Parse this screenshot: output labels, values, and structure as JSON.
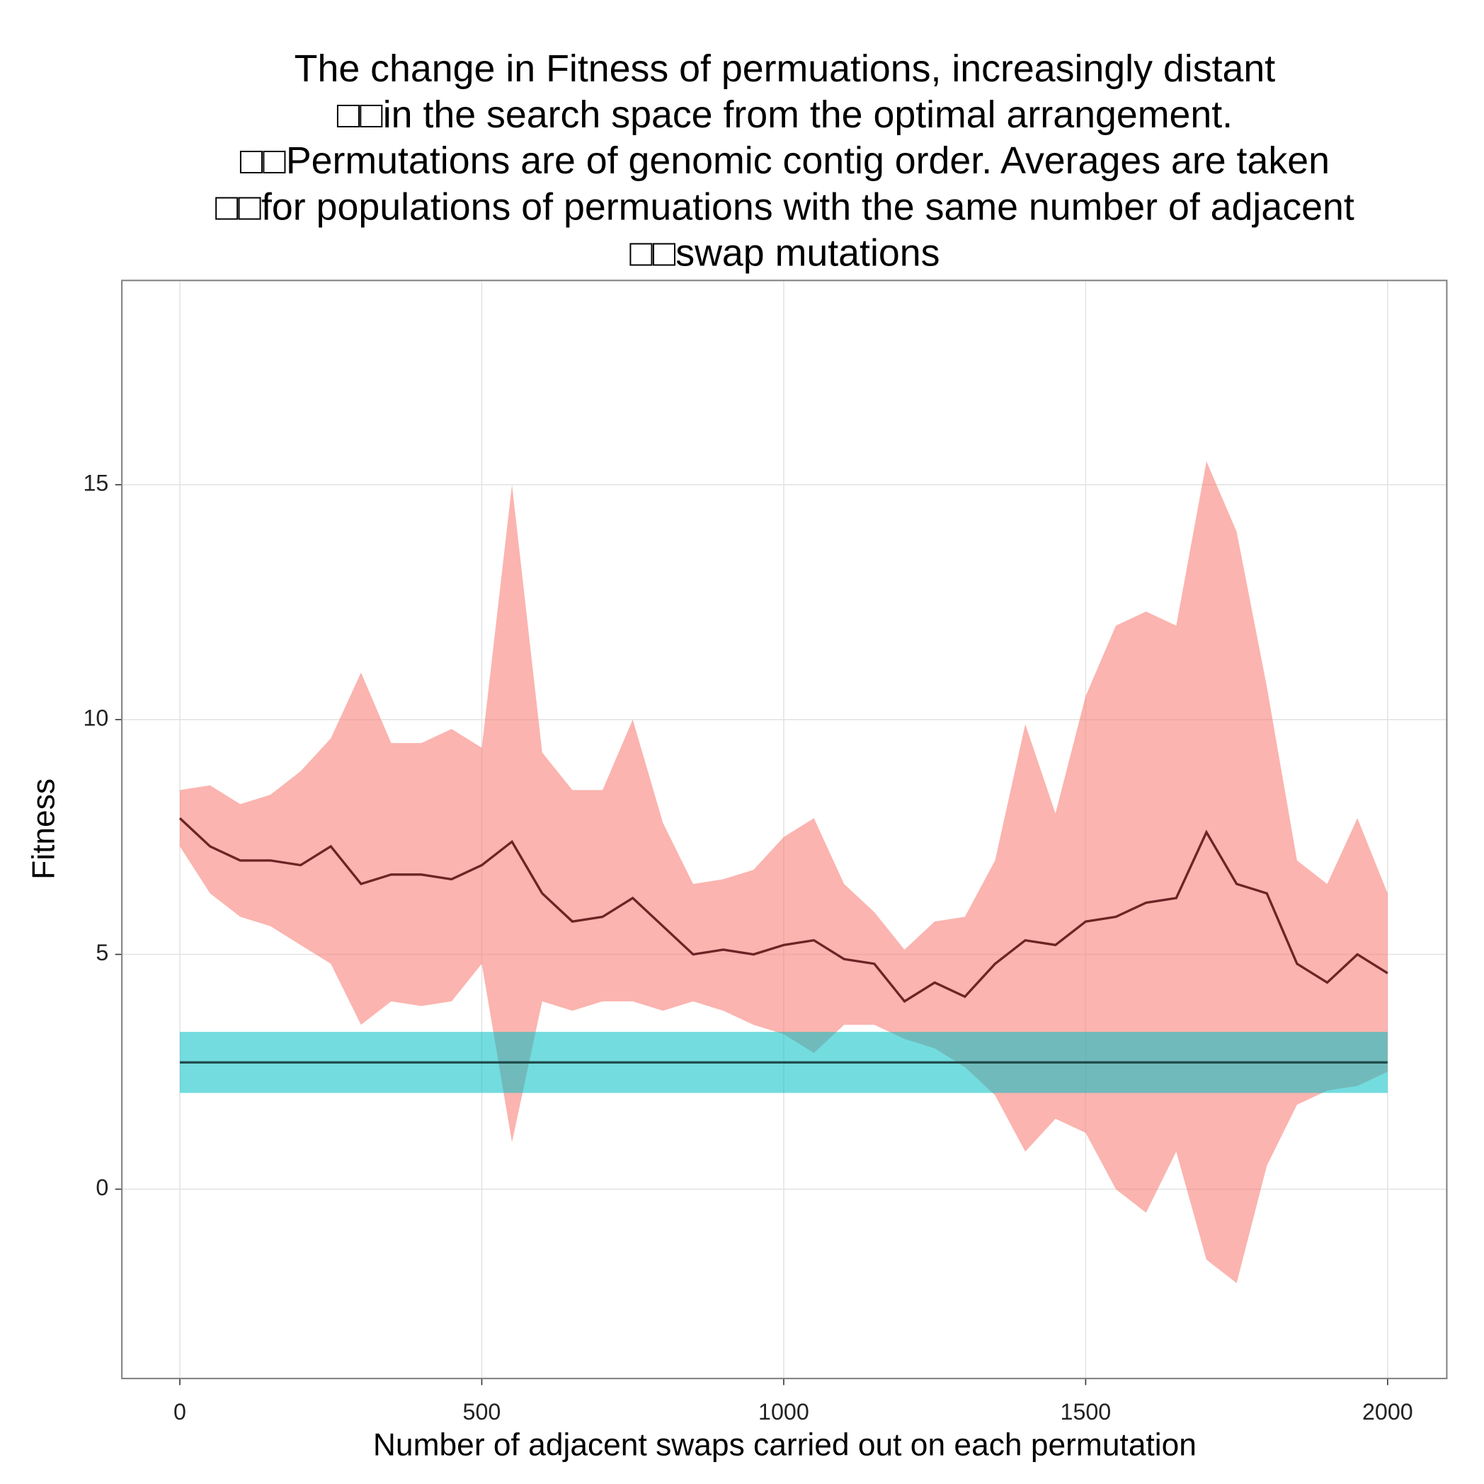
{
  "chart_data": {
    "type": "line",
    "title": [
      "The change in Fitness of permuations, increasingly distant",
      "□□in the search space from the optimal arrangement.",
      "□□Permutations are of genomic contig order. Averages are taken",
      "□□for populations of permuations with the same number of adjacent",
      "□□swap mutations"
    ],
    "x_label": "Number of adjacent swaps carried out on each permutation",
    "y_label": "Fitness",
    "xlim": [
      -96,
      2098
    ],
    "ylim": [
      -4.03,
      19.35
    ],
    "xticks": [
      0,
      500,
      1000,
      1500,
      2000
    ],
    "yticks": [
      0,
      5,
      10,
      15
    ],
    "grid": true,
    "series": [
      {
        "color": "#6b2525",
        "band_color": "#f8766d",
        "x": [
          0,
          50,
          100,
          150,
          200,
          250,
          300,
          350,
          400,
          450,
          500,
          550,
          600,
          650,
          700,
          750,
          800,
          850,
          900,
          950,
          1000,
          1050,
          1100,
          1150,
          1200,
          1250,
          1300,
          1350,
          1400,
          1450,
          1500,
          1550,
          1600,
          1650,
          1700,
          1750,
          1800,
          1850,
          1900,
          1950,
          2000
        ],
        "values": [
          7.9,
          7.3,
          7.0,
          7.0,
          6.9,
          7.3,
          6.5,
          6.7,
          6.7,
          6.6,
          6.9,
          7.4,
          6.3,
          5.7,
          5.8,
          6.2,
          5.6,
          5.0,
          5.1,
          5.0,
          5.2,
          5.3,
          4.9,
          4.8,
          4.0,
          4.4,
          4.1,
          4.8,
          5.3,
          5.2,
          5.7,
          5.8,
          6.1,
          6.2,
          7.6,
          6.5,
          6.3,
          4.8,
          4.4,
          5.0,
          4.6
        ],
        "lower": [
          7.3,
          6.3,
          5.8,
          5.6,
          5.2,
          4.8,
          3.5,
          4.0,
          3.9,
          4.0,
          4.8,
          1.0,
          4.0,
          3.8,
          4.0,
          4.0,
          3.8,
          4.0,
          3.8,
          3.5,
          3.3,
          2.9,
          3.5,
          3.5,
          3.2,
          3.0,
          2.6,
          2.0,
          0.8,
          1.5,
          1.2,
          0.0,
          -0.5,
          0.8,
          -1.5,
          -2.0,
          0.5,
          1.8,
          2.1,
          2.2,
          2.5
        ],
        "upper": [
          8.5,
          8.6,
          8.2,
          8.4,
          8.9,
          9.6,
          11.0,
          9.5,
          9.5,
          9.8,
          9.4,
          15.0,
          9.3,
          8.5,
          8.5,
          10.0,
          7.8,
          6.5,
          6.6,
          6.8,
          7.5,
          7.9,
          6.5,
          5.9,
          5.1,
          5.7,
          5.8,
          7.0,
          9.9,
          8.0,
          10.5,
          12.0,
          12.3,
          12.0,
          15.5,
          14.0,
          10.7,
          7.0,
          6.5,
          7.9,
          6.3
        ]
      },
      {
        "color": "#1f4a4a",
        "band_color": "#00bfc4",
        "x": [
          0,
          2000
        ],
        "values": [
          2.7,
          2.7
        ],
        "lower": [
          2.05,
          2.05
        ],
        "upper": [
          3.35,
          3.35
        ]
      }
    ]
  }
}
